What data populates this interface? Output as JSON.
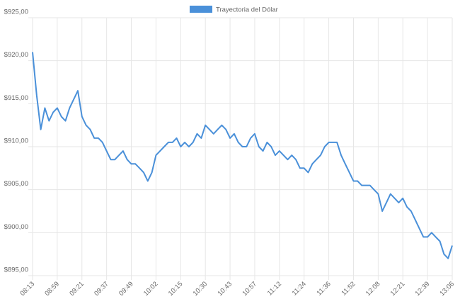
{
  "chart_data": {
    "type": "line",
    "categories": [
      "08:13",
      null,
      null,
      null,
      null,
      null,
      "08:59",
      null,
      null,
      null,
      null,
      null,
      "09:21",
      null,
      null,
      null,
      null,
      null,
      "09:37",
      null,
      null,
      null,
      null,
      null,
      "09:49",
      null,
      null,
      null,
      null,
      null,
      "10:02",
      null,
      null,
      null,
      null,
      null,
      "10:15",
      null,
      null,
      null,
      null,
      null,
      "10:30",
      null,
      null,
      null,
      null,
      null,
      "10:43",
      null,
      null,
      null,
      null,
      null,
      "10:57",
      null,
      null,
      null,
      null,
      null,
      "11:12",
      null,
      null,
      null,
      null,
      null,
      "11:24",
      null,
      null,
      null,
      null,
      null,
      "11:36",
      null,
      null,
      null,
      null,
      null,
      "11:52",
      null,
      null,
      null,
      null,
      null,
      "12:08",
      null,
      null,
      null,
      null,
      null,
      "12:21",
      null,
      null,
      null,
      null,
      null,
      "12:39",
      null,
      null,
      null,
      null,
      null,
      "13:06"
    ],
    "series": [
      {
        "name": "Trayectoria del Dólar",
        "color": "#4a90d9",
        "values": [
          921,
          916,
          912,
          914.5,
          913,
          914,
          914.5,
          913.5,
          913,
          914.5,
          915.5,
          916.5,
          913.5,
          912.5,
          912,
          911,
          911,
          910.5,
          909.5,
          908.5,
          908.5,
          909,
          909.5,
          908.5,
          908,
          908,
          907.5,
          907,
          906,
          907,
          909,
          909.5,
          910,
          910.5,
          910.5,
          911,
          910,
          910.5,
          910,
          910.5,
          911.5,
          911,
          912.5,
          912,
          911.5,
          912,
          912.5,
          912,
          911,
          911.5,
          910.5,
          910,
          910,
          911,
          911.5,
          910,
          909.5,
          910.5,
          910,
          909,
          909.5,
          909,
          908.5,
          909,
          908.5,
          907.5,
          907.5,
          907,
          908,
          908.5,
          909,
          910,
          910.5,
          910.5,
          910.5,
          909,
          908,
          907,
          906,
          906,
          905.5,
          905.5,
          905.5,
          905,
          904.5,
          902.5,
          903.5,
          904.5,
          904,
          903.5,
          904,
          903,
          902.5,
          901.5,
          900.5,
          899.5,
          899.5,
          900,
          899.5,
          899,
          897.5,
          897,
          898.5
        ]
      }
    ],
    "ylim": [
      895,
      925
    ],
    "yticks": [
      {
        "value": 895,
        "label": "$895,00"
      },
      {
        "value": 900,
        "label": "$900,00"
      },
      {
        "value": 905,
        "label": "$905,00"
      },
      {
        "value": 910,
        "label": "$910,00"
      },
      {
        "value": 915,
        "label": "$915,00"
      },
      {
        "value": 920,
        "label": "$920,00"
      },
      {
        "value": 925,
        "label": "$925,00"
      }
    ],
    "grid": true
  }
}
